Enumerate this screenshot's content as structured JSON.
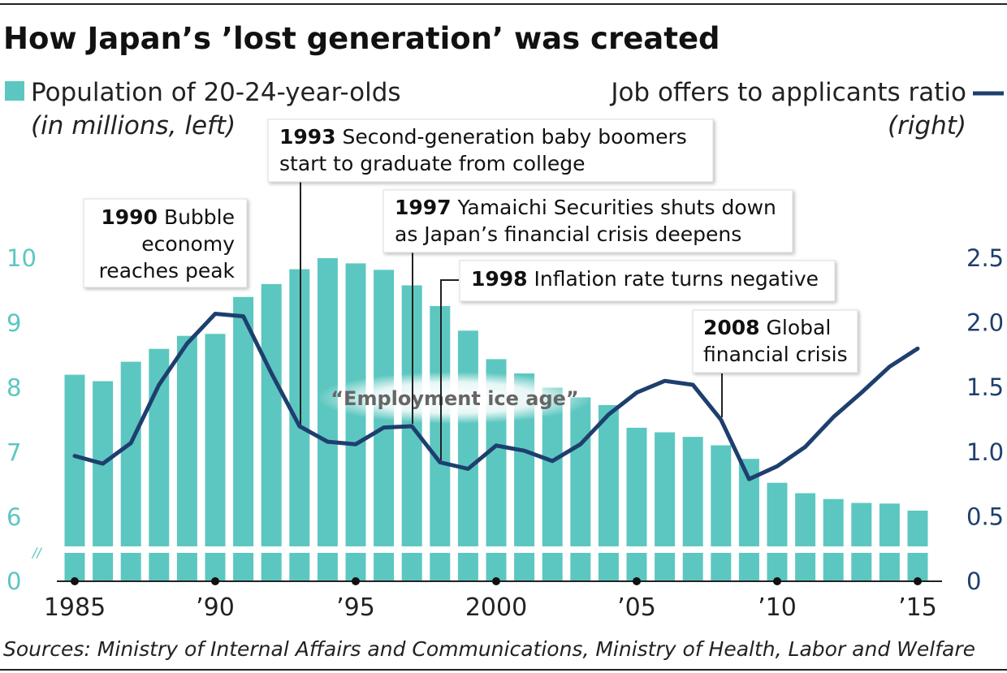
{
  "header": {
    "title": "How Japan’s ’lost generation’ was created"
  },
  "legend": {
    "bars_label": "Population of 20-24-year-olds",
    "bars_sub": "(in millions, left)",
    "line_label": "Job offers to applicants ratio",
    "line_sub": "(right)"
  },
  "annotations": {
    "a1990": {
      "year": "1990",
      "lines": [
        "Bubble",
        "economy",
        "reaches peak"
      ]
    },
    "a1993": {
      "year": "1993",
      "lines": [
        "Second-generation baby boomers",
        "start to graduate from college"
      ]
    },
    "a1997": {
      "year": "1997",
      "lines": [
        "Yamaichi Securities shuts down",
        "as Japan’s financial crisis deepens"
      ]
    },
    "a1998": {
      "year": "1998",
      "lines": [
        "Inflation rate turns negative"
      ]
    },
    "a2008": {
      "year": "2008",
      "lines": [
        "Global",
        "financial crisis"
      ]
    },
    "ice_age": "“Employment ice age”"
  },
  "axis_break_mark": "//",
  "source": "Sources: Ministry of Internal Affairs and Communications, Ministry of Health, Labor and Welfare",
  "colors": {
    "bars": "#5cc7c0",
    "line": "#1e3f6e",
    "axis": "#222222"
  },
  "chart_data": {
    "type": "bar",
    "title": "How Japan’s ’lost generation’ was created",
    "x": [
      1985,
      1986,
      1987,
      1988,
      1989,
      1990,
      1991,
      1992,
      1993,
      1994,
      1995,
      1996,
      1997,
      1998,
      1999,
      2000,
      2001,
      2002,
      2003,
      2004,
      2005,
      2006,
      2007,
      2008,
      2009,
      2010,
      2011,
      2012,
      2013,
      2014,
      2015
    ],
    "xtick_values": [
      1985,
      1990,
      1995,
      2000,
      2005,
      2010,
      2015
    ],
    "xtick_labels": [
      "1985",
      "’90",
      "’95",
      "2000",
      "’05",
      "’10",
      "’15"
    ],
    "series": [
      {
        "name": "Population of 20-24-year-olds (in millions, left)",
        "axis": "left",
        "type": "bar",
        "values": [
          8.2,
          8.1,
          8.4,
          8.6,
          8.8,
          8.83,
          9.4,
          9.6,
          9.83,
          10.0,
          9.92,
          9.82,
          9.58,
          9.26,
          8.88,
          8.44,
          8.22,
          8.0,
          7.85,
          7.73,
          7.38,
          7.31,
          7.24,
          7.11,
          6.9,
          6.53,
          6.37,
          6.28,
          6.22,
          6.21,
          6.1
        ]
      },
      {
        "name": "Job offers to applicants ratio (right)",
        "axis": "right",
        "type": "line",
        "values": [
          0.97,
          0.91,
          1.07,
          1.52,
          1.84,
          2.07,
          2.05,
          1.61,
          1.2,
          1.08,
          1.06,
          1.19,
          1.2,
          0.92,
          0.87,
          1.05,
          1.01,
          0.93,
          1.06,
          1.29,
          1.46,
          1.55,
          1.52,
          1.25,
          0.79,
          0.89,
          1.04,
          1.27,
          1.46,
          1.66,
          1.8
        ]
      }
    ],
    "y_left": {
      "ticks": [
        0,
        6,
        7,
        8,
        9,
        10
      ],
      "tick_labels": [
        "0",
        "6",
        "7",
        "8",
        "9",
        "10"
      ],
      "break_between": [
        0,
        5.5
      ],
      "range": [
        0,
        10
      ]
    },
    "y_right": {
      "ticks": [
        0,
        0.5,
        1.0,
        1.5,
        2.0,
        2.5
      ],
      "tick_labels": [
        "0",
        "0.5",
        "1.0",
        "1.5",
        "2.0",
        "2.5"
      ],
      "range": [
        0,
        2.5
      ]
    }
  }
}
